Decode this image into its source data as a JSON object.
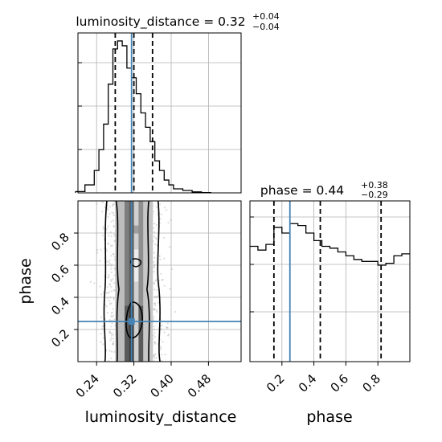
{
  "panels": {
    "lum_title": {
      "param": "luminosity_distance",
      "value": "0.32",
      "upper": "+0.04",
      "lower": "−0.04"
    },
    "phase_title": {
      "param": "phase",
      "value": "0.44",
      "upper": "+0.38",
      "lower": "−0.29"
    }
  },
  "labels": {
    "xlabel_left": "luminosity_distance",
    "xlabel_right": "phase",
    "ylabel": "phase"
  },
  "colors": {
    "truth": "#4682b4",
    "line": "#000000",
    "grid": "#b0b0b0"
  },
  "chart_data": [
    {
      "type": "histogram",
      "name": "luminosity_distance marginal",
      "xlim": [
        0.2,
        0.55
      ],
      "bins": [
        0.195,
        0.215,
        0.235,
        0.245,
        0.255,
        0.265,
        0.275,
        0.285,
        0.295,
        0.305,
        0.315,
        0.325,
        0.335,
        0.345,
        0.355,
        0.365,
        0.375,
        0.385,
        0.395,
        0.405,
        0.425,
        0.445,
        0.465,
        0.485
      ],
      "counts": [
        0.8,
        5,
        14,
        27,
        43,
        68,
        90,
        95,
        92,
        78,
        72,
        62,
        50,
        41,
        32,
        20,
        14,
        8,
        5,
        2.5,
        1.5,
        0.6,
        0.2
      ],
      "ylim": [
        0,
        100
      ],
      "quantiles": [
        0.28,
        0.32,
        0.36
      ],
      "truth": 0.315,
      "xticks": [
        "0.24",
        "0.32",
        "0.40",
        "0.48"
      ],
      "grid": true
    },
    {
      "type": "histogram",
      "name": "phase marginal",
      "xlim": [
        0.0,
        1.0
      ],
      "bins": [
        0.0,
        0.05,
        0.1,
        0.15,
        0.2,
        0.25,
        0.3,
        0.35,
        0.4,
        0.45,
        0.5,
        0.55,
        0.6,
        0.65,
        0.7,
        0.75,
        0.8,
        0.85,
        0.9,
        0.95,
        1.0
      ],
      "counts": [
        61,
        59,
        62,
        71,
        68,
        73,
        72,
        68,
        64,
        61,
        60,
        58,
        56,
        54,
        53,
        53,
        51,
        52,
        56,
        57
      ],
      "ylim": [
        0,
        85
      ],
      "quantiles": [
        0.15,
        0.44,
        0.82
      ],
      "truth": 0.25,
      "xticks": [
        "0.2",
        "0.4",
        "0.6",
        "0.8"
      ],
      "grid": true
    },
    {
      "type": "heatmap",
      "name": "luminosity_distance vs phase 2D",
      "xlim": [
        0.2,
        0.55
      ],
      "ylim": [
        0.0,
        1.0
      ],
      "truth": {
        "x": 0.315,
        "y": 0.25
      },
      "xticks": [
        "0.24",
        "0.32",
        "0.40",
        "0.48"
      ],
      "yticks": [
        "0.2",
        "0.4",
        "0.6",
        "0.8"
      ],
      "grid": true
    }
  ]
}
